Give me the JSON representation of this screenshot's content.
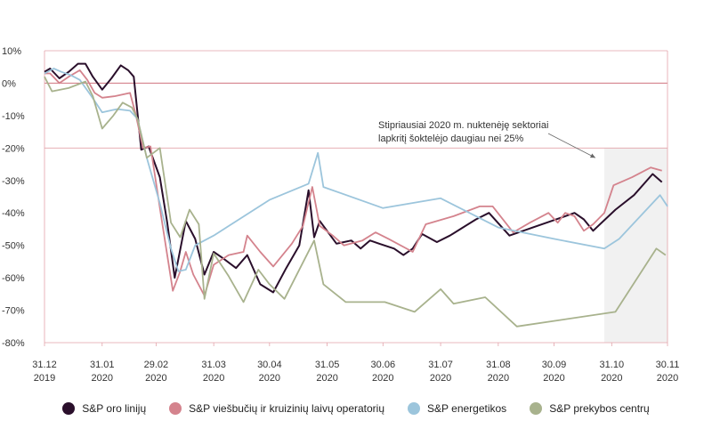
{
  "chart_data": {
    "type": "line",
    "title": "",
    "xlabel": "",
    "ylabel": "",
    "ylim": [
      -80,
      10
    ],
    "yticks": [
      10,
      0,
      -10,
      -20,
      -30,
      -40,
      -50,
      -60,
      -70,
      -80
    ],
    "ytick_labels": [
      "10%",
      "0%",
      "-10%",
      "-20%",
      "-30%",
      "-40%",
      "-50%",
      "-60%",
      "-70%",
      "-80%"
    ],
    "xticks": [
      {
        "date": "2019-12-31",
        "day": "31.12",
        "year": "2019"
      },
      {
        "date": "2020-01-31",
        "day": "31.01",
        "year": "2020"
      },
      {
        "date": "2020-02-29",
        "day": "29.02",
        "year": "2020"
      },
      {
        "date": "2020-03-31",
        "day": "31.03",
        "year": "2020"
      },
      {
        "date": "2020-04-30",
        "day": "30.04",
        "year": "2020"
      },
      {
        "date": "2020-05-31",
        "day": "31.05",
        "year": "2020"
      },
      {
        "date": "2020-06-30",
        "day": "30.06",
        "year": "2020"
      },
      {
        "date": "2020-07-31",
        "day": "31.07",
        "year": "2020"
      },
      {
        "date": "2020-08-31",
        "day": "31.08",
        "year": "2020"
      },
      {
        "date": "2020-09-30",
        "day": "30.09",
        "year": "2020"
      },
      {
        "date": "2020-10-31",
        "day": "31.10",
        "year": "2020"
      },
      {
        "date": "2020-11-30",
        "day": "30.11",
        "year": "2020"
      }
    ],
    "xlim": [
      "2019-12-31",
      "2020-11-30"
    ],
    "grid": false,
    "legend_position": "bottom",
    "highlight_range": [
      "2020-10-27",
      "2020-11-30"
    ],
    "annotation": {
      "lines": [
        "Stipriausiai 2020 m. nuktenėję sektoriai",
        "lapkritį šoktelėjo daugiau nei 25%"
      ],
      "arrow_to": {
        "x": "2020-10-27",
        "y": -23
      }
    },
    "series": [
      {
        "name": "S&P oro linijų",
        "color": "#2a0f2b",
        "points": [
          [
            "2019-12-31",
            3.5
          ],
          [
            "2020-01-03",
            4.5
          ],
          [
            "2020-01-08",
            1.5
          ],
          [
            "2020-01-13",
            3.5
          ],
          [
            "2020-01-18",
            6
          ],
          [
            "2020-01-22",
            6
          ],
          [
            "2020-01-26",
            2
          ],
          [
            "2020-01-31",
            -2
          ],
          [
            "2020-02-05",
            1.5
          ],
          [
            "2020-02-10",
            5.5
          ],
          [
            "2020-02-14",
            4
          ],
          [
            "2020-02-17",
            2
          ],
          [
            "2020-02-21",
            -20.5
          ],
          [
            "2020-02-25",
            -19.5
          ],
          [
            "2020-03-02",
            -29
          ],
          [
            "2020-03-06",
            -43
          ],
          [
            "2020-03-10",
            -60
          ],
          [
            "2020-03-16",
            -42.5
          ],
          [
            "2020-03-21",
            -48
          ],
          [
            "2020-03-26",
            -59
          ],
          [
            "2020-03-31",
            -52
          ],
          [
            "2020-04-05",
            -54
          ],
          [
            "2020-04-12",
            -57
          ],
          [
            "2020-04-18",
            -53
          ],
          [
            "2020-04-25",
            -62
          ],
          [
            "2020-05-02",
            -64.5
          ],
          [
            "2020-05-09",
            -57
          ],
          [
            "2020-05-16",
            -50
          ],
          [
            "2020-05-21",
            -33
          ],
          [
            "2020-05-24",
            -47.5
          ],
          [
            "2020-05-27",
            -42.5
          ],
          [
            "2020-06-05",
            -49.5
          ],
          [
            "2020-06-13",
            -48.5
          ],
          [
            "2020-06-18",
            -51
          ],
          [
            "2020-06-23",
            -48.5
          ],
          [
            "2020-06-28",
            -49.5
          ],
          [
            "2020-07-06",
            -51
          ],
          [
            "2020-07-11",
            -53
          ],
          [
            "2020-07-16",
            -51
          ],
          [
            "2020-07-21",
            -46.5
          ],
          [
            "2020-07-29",
            -49
          ],
          [
            "2020-08-05",
            -47
          ],
          [
            "2020-08-12",
            -44.5
          ],
          [
            "2020-08-19",
            -42
          ],
          [
            "2020-08-26",
            -40
          ],
          [
            "2020-09-06",
            -47
          ],
          [
            "2020-09-16",
            -45
          ],
          [
            "2020-09-26",
            -43
          ],
          [
            "2020-10-06",
            -41
          ],
          [
            "2020-10-11",
            -40
          ],
          [
            "2020-10-16",
            -42
          ],
          [
            "2020-10-21",
            -45.5
          ],
          [
            "2020-11-02",
            -39
          ],
          [
            "2020-11-12",
            -34.5
          ],
          [
            "2020-11-22",
            -28
          ],
          [
            "2020-11-27",
            -30.5
          ]
        ]
      },
      {
        "name": "S&P viešbučių ir kruizinių laivų operatorių",
        "color": "#d4838d",
        "points": [
          [
            "2019-12-31",
            3
          ],
          [
            "2020-01-03",
            3
          ],
          [
            "2020-01-08",
            0
          ],
          [
            "2020-01-13",
            2
          ],
          [
            "2020-01-19",
            4
          ],
          [
            "2020-01-23",
            1
          ],
          [
            "2020-01-27",
            -3
          ],
          [
            "2020-01-31",
            -4.5
          ],
          [
            "2020-02-07",
            -4
          ],
          [
            "2020-02-15",
            -3
          ],
          [
            "2020-02-18",
            -9.5
          ],
          [
            "2020-02-22",
            -20
          ],
          [
            "2020-02-26",
            -19.5
          ],
          [
            "2020-03-03",
            -42
          ],
          [
            "2020-03-09",
            -64
          ],
          [
            "2020-03-13",
            -58
          ],
          [
            "2020-03-16",
            -52
          ],
          [
            "2020-03-20",
            -59
          ],
          [
            "2020-03-26",
            -65.5
          ],
          [
            "2020-03-31",
            -56
          ],
          [
            "2020-04-08",
            -53
          ],
          [
            "2020-04-16",
            -52
          ],
          [
            "2020-04-18",
            -47
          ],
          [
            "2020-04-25",
            -52
          ],
          [
            "2020-05-02",
            -56.5
          ],
          [
            "2020-05-12",
            -49.5
          ],
          [
            "2020-05-18",
            -44
          ],
          [
            "2020-05-23",
            -32
          ],
          [
            "2020-05-27",
            -44
          ],
          [
            "2020-06-03",
            -47
          ],
          [
            "2020-06-09",
            -50
          ],
          [
            "2020-06-19",
            -48.5
          ],
          [
            "2020-06-26",
            -46
          ],
          [
            "2020-07-03",
            -48
          ],
          [
            "2020-07-16",
            -52
          ],
          [
            "2020-07-23",
            -43.5
          ],
          [
            "2020-08-07",
            -41
          ],
          [
            "2020-08-21",
            -38
          ],
          [
            "2020-08-28",
            -38
          ],
          [
            "2020-09-08",
            -46
          ],
          [
            "2020-09-17",
            -43
          ],
          [
            "2020-09-27",
            -40
          ],
          [
            "2020-10-02",
            -43
          ],
          [
            "2020-10-06",
            -40
          ],
          [
            "2020-10-11",
            -41
          ],
          [
            "2020-10-16",
            -45.5
          ],
          [
            "2020-10-21",
            -43.5
          ],
          [
            "2020-10-27",
            -40
          ],
          [
            "2020-11-01",
            -31.5
          ],
          [
            "2020-11-11",
            -29
          ],
          [
            "2020-11-21",
            -26
          ],
          [
            "2020-11-27",
            -27
          ]
        ]
      },
      {
        "name": "S&P energetikos",
        "color": "#9cc5dc",
        "points": [
          [
            "2019-12-31",
            3
          ],
          [
            "2020-01-05",
            4.5
          ],
          [
            "2020-01-09",
            3.5
          ],
          [
            "2020-01-14",
            2.5
          ],
          [
            "2020-01-19",
            1
          ],
          [
            "2020-01-24",
            -3
          ],
          [
            "2020-01-27",
            -5.5
          ],
          [
            "2020-01-31",
            -9
          ],
          [
            "2020-02-08",
            -8
          ],
          [
            "2020-02-15",
            -8.5
          ],
          [
            "2020-02-19",
            -11
          ],
          [
            "2020-02-24",
            -23
          ],
          [
            "2020-03-02",
            -37
          ],
          [
            "2020-03-08",
            -51
          ],
          [
            "2020-03-12",
            -58
          ],
          [
            "2020-03-16",
            -57.5
          ],
          [
            "2020-03-21",
            -50
          ],
          [
            "2020-03-31",
            -47
          ],
          [
            "2020-04-30",
            -36
          ],
          [
            "2020-05-21",
            -31
          ],
          [
            "2020-05-26",
            -21.5
          ],
          [
            "2020-05-29",
            -32
          ],
          [
            "2020-06-30",
            -38.5
          ],
          [
            "2020-07-31",
            -35.5
          ],
          [
            "2020-08-31",
            -44.5
          ],
          [
            "2020-09-30",
            -48
          ],
          [
            "2020-10-27",
            -51
          ],
          [
            "2020-11-04",
            -48
          ],
          [
            "2020-11-26",
            -34.5
          ],
          [
            "2020-11-30",
            -38
          ]
        ]
      },
      {
        "name": "S&P prekybos centrų",
        "color": "#a8b28d",
        "points": [
          [
            "2019-12-31",
            2
          ],
          [
            "2020-01-04",
            -2.5
          ],
          [
            "2020-01-13",
            -1.5
          ],
          [
            "2020-01-22",
            0.5
          ],
          [
            "2020-01-26",
            -4
          ],
          [
            "2020-01-31",
            -14
          ],
          [
            "2020-02-06",
            -10
          ],
          [
            "2020-02-11",
            -6
          ],
          [
            "2020-02-16",
            -7.5
          ],
          [
            "2020-02-19",
            -11
          ],
          [
            "2020-02-24",
            -23
          ],
          [
            "2020-03-02",
            -20
          ],
          [
            "2020-03-08",
            -43
          ],
          [
            "2020-03-13",
            -47.5
          ],
          [
            "2020-03-18",
            -39
          ],
          [
            "2020-03-23",
            -43.5
          ],
          [
            "2020-03-26",
            -66.5
          ],
          [
            "2020-03-31",
            -52.5
          ],
          [
            "2020-04-08",
            -59.5
          ],
          [
            "2020-04-16",
            -67.5
          ],
          [
            "2020-04-24",
            -57.5
          ],
          [
            "2020-04-30",
            -62
          ],
          [
            "2020-05-08",
            -66.5
          ],
          [
            "2020-05-24",
            -48.5
          ],
          [
            "2020-05-29",
            -62
          ],
          [
            "2020-06-10",
            -67.5
          ],
          [
            "2020-07-01",
            -67.5
          ],
          [
            "2020-07-17",
            -70.5
          ],
          [
            "2020-07-31",
            -63.5
          ],
          [
            "2020-08-07",
            -68
          ],
          [
            "2020-08-24",
            -66
          ],
          [
            "2020-09-10",
            -75
          ],
          [
            "2020-11-02",
            -70.5
          ],
          [
            "2020-11-24",
            -51
          ],
          [
            "2020-11-29",
            -53
          ]
        ]
      }
    ]
  }
}
